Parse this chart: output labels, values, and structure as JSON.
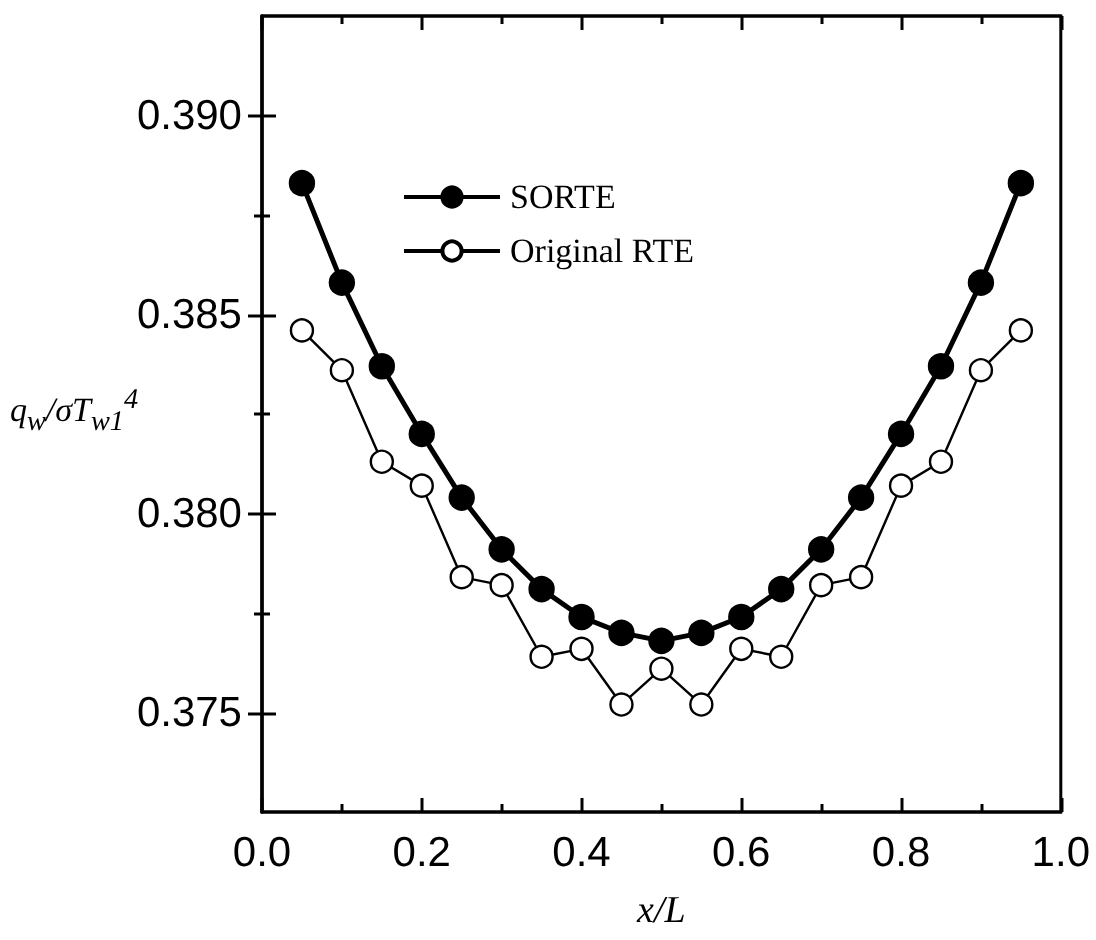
{
  "chart_data": {
    "type": "line",
    "xlabel": "x/L",
    "ylabel": "q$_{w}$/σT$_{w1}$$^{4}$",
    "x": [
      0.05,
      0.1,
      0.15,
      0.2,
      0.25,
      0.3,
      0.35,
      0.4,
      0.45,
      0.5,
      0.55,
      0.6,
      0.65,
      0.7,
      0.75,
      0.8,
      0.85,
      0.9,
      0.95
    ],
    "series": [
      {
        "name": "SORTE",
        "color": "#000000",
        "values": [
          0.3883,
          0.3858,
          0.3837,
          0.382,
          0.3804,
          0.3791,
          0.3781,
          0.3774,
          0.377,
          0.3768,
          0.377,
          0.3774,
          0.3781,
          0.3791,
          0.3804,
          0.382,
          0.3837,
          0.3858,
          0.3883
        ]
      },
      {
        "name": "Original RTE",
        "color": "#000000",
        "values": [
          0.3846,
          0.3836,
          0.3813,
          0.3807,
          0.3784,
          0.3782,
          0.3764,
          0.3766,
          0.3752,
          0.3761,
          0.3752,
          0.3766,
          0.3764,
          0.3782,
          0.3784,
          0.3807,
          0.3813,
          0.3836,
          0.3846
        ]
      }
    ],
    "xlim": [
      0,
      1
    ],
    "xticks": [
      {
        "value": 0,
        "label": "0.0"
      },
      0.2,
      0.4,
      0.6,
      0.8,
      {
        "value": 1,
        "label": "1.0"
      }
    ],
    "ylim": [
      0.3725,
      0.3925
    ],
    "yticks": [
      0.375,
      {
        "value": 0.38,
        "label": "0.380"
      },
      0.385,
      {
        "value": 0.39,
        "label": "0.390"
      }
    ],
    "legend": "top",
    "grid": false,
    "marker": "circle",
    "line_style": "solid"
  }
}
